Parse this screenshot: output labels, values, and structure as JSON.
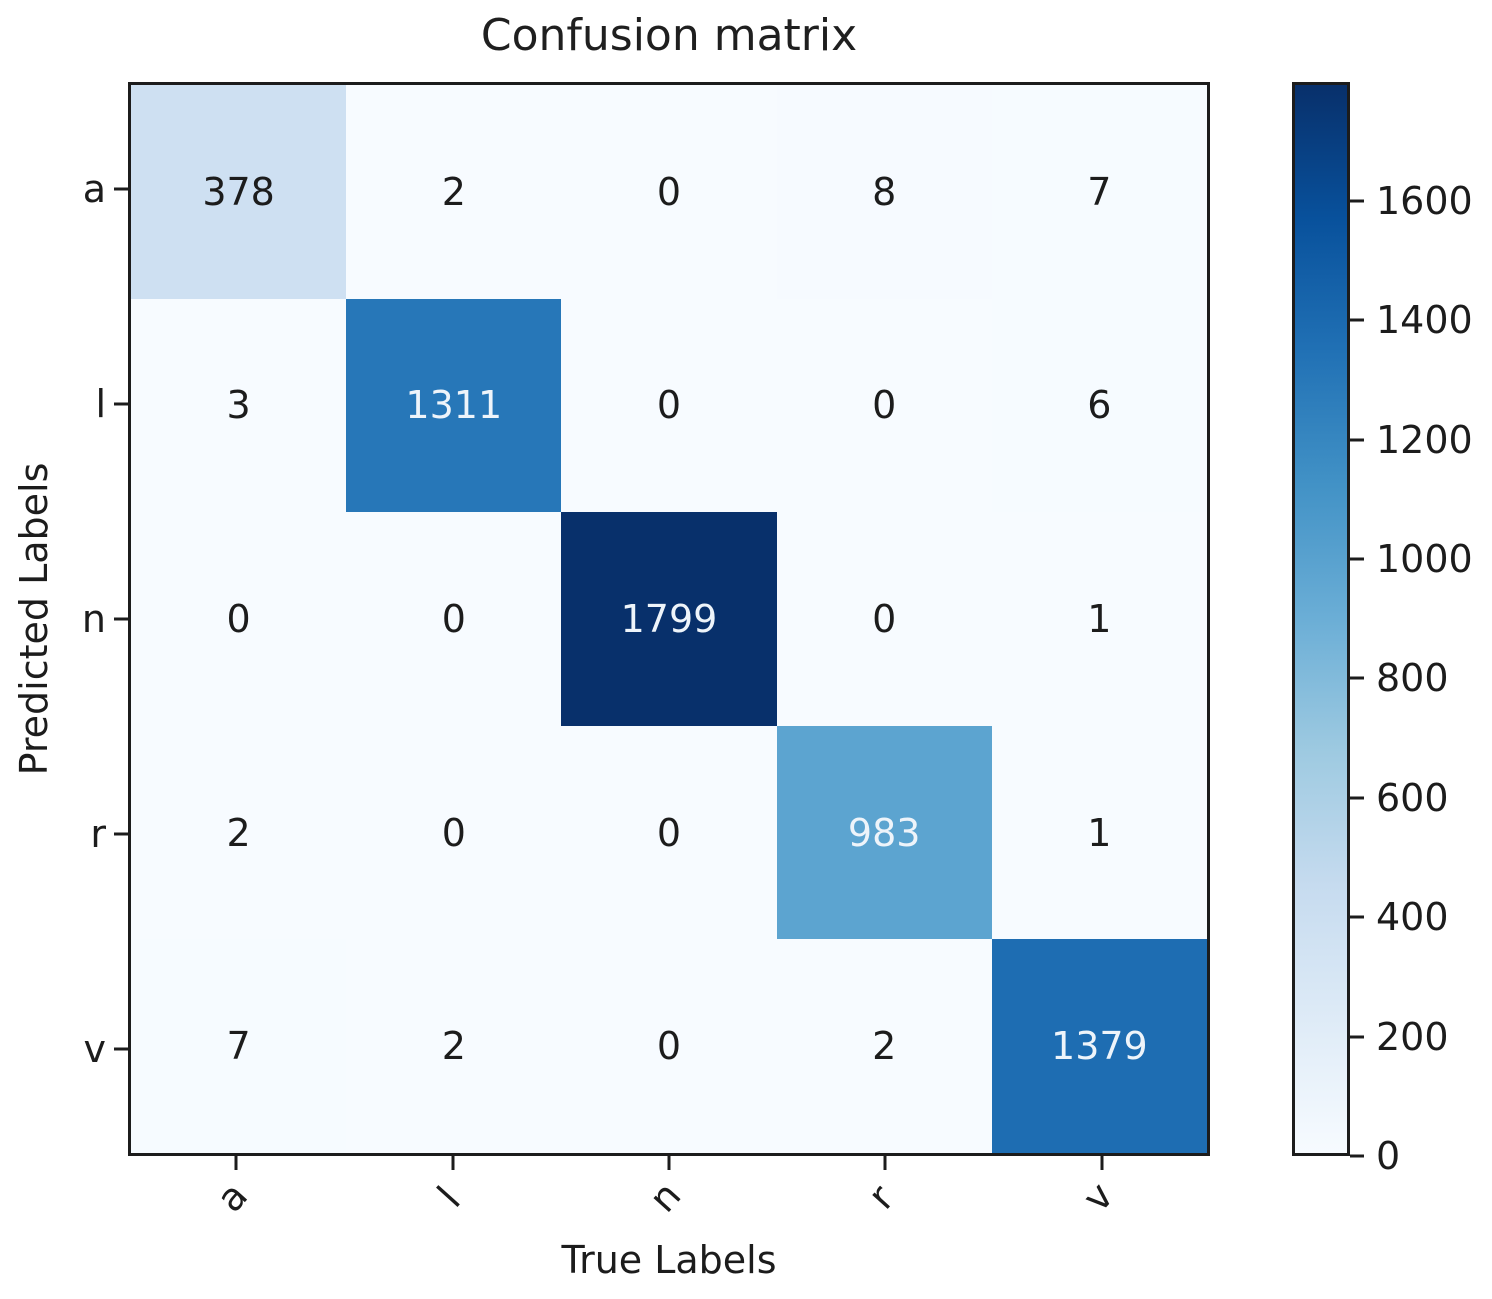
{
  "chart_data": {
    "type": "heatmap",
    "title": "Confusion matrix",
    "xlabel": "True Labels",
    "ylabel": "Predicted Labels",
    "x_categories": [
      "a",
      "l",
      "n",
      "r",
      "v"
    ],
    "y_categories": [
      "a",
      "l",
      "n",
      "r",
      "v"
    ],
    "matrix": [
      [
        378,
        2,
        0,
        8,
        7
      ],
      [
        3,
        1311,
        0,
        0,
        6
      ],
      [
        0,
        0,
        1799,
        0,
        1
      ],
      [
        2,
        0,
        0,
        983,
        1
      ],
      [
        7,
        2,
        0,
        2,
        1379
      ]
    ],
    "vmin": 0,
    "vmax": 1799,
    "colormap": "Blues",
    "colormap_stops": [
      "#f7fbff",
      "#deebf7",
      "#c6dbef",
      "#9ecae1",
      "#6baed6",
      "#4292c6",
      "#2171b5",
      "#08519c",
      "#08306b"
    ],
    "colorbar_ticks": [
      0,
      200,
      400,
      600,
      800,
      1000,
      1200,
      1400,
      1600
    ],
    "colorbar_position": "right",
    "grid": false,
    "cell_text_color_dark": "#1c1c1c",
    "cell_text_color_light": "#eef4fa",
    "axis_color": "#1c1c1c"
  }
}
